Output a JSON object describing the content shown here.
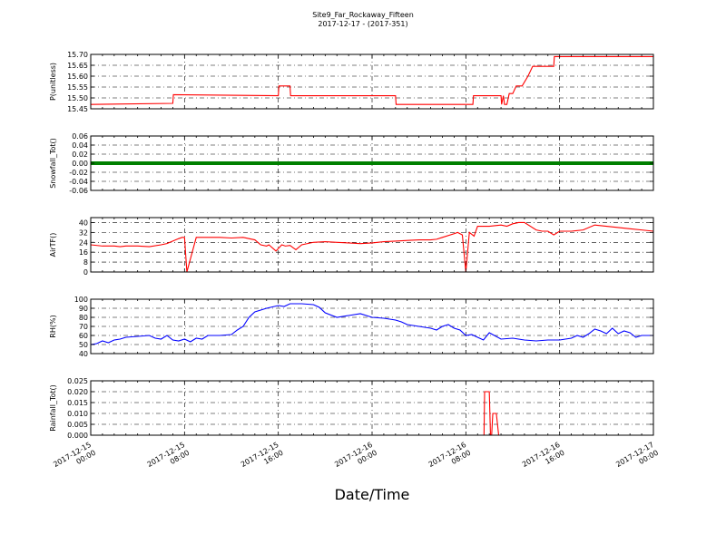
{
  "figure": {
    "title_line1": "Site9_Far_Rockaway_Fifteen",
    "title_line2": "2017-12-17 - (2017-351)",
    "xlabel": "Date/Time",
    "x_ticks": [
      "2017-12-15 00:00",
      "2017-12-15 08:00",
      "2017-12-15 16:00",
      "2017-12-16 00:00",
      "2017-12-16 08:00",
      "2017-12-16 16:00",
      "2017-12-17 00:00"
    ],
    "x_tick_lines": [
      [
        "2017-12-15",
        "00:00"
      ],
      [
        "2017-12-15",
        "08:00"
      ],
      [
        "2017-12-15",
        "16:00"
      ],
      [
        "2017-12-16",
        "00:00"
      ],
      [
        "2017-12-16",
        "08:00"
      ],
      [
        "2017-12-16",
        "16:00"
      ],
      [
        "2017-12-17",
        "00:00"
      ]
    ]
  },
  "chart_data": [
    {
      "type": "line",
      "ylabel": "P(unitless)",
      "color": "#ff0000",
      "ylim": [
        15.45,
        15.7
      ],
      "yticks": [
        "15.45",
        "15.50",
        "15.55",
        "15.60",
        "15.65",
        "15.70"
      ],
      "xlim_hours": [
        0,
        48
      ],
      "grid": true,
      "series": [
        {
          "x": [
            0,
            7.0,
            7.05,
            16.0,
            16.05,
            17.0,
            17.05,
            26.0,
            26.05,
            32.6,
            32.65,
            35.0,
            35.05,
            35.2,
            35.3,
            35.5,
            35.7,
            36.0,
            36.3,
            36.8,
            37.3,
            37.7,
            38.2,
            39.5,
            39.55,
            48.0
          ],
          "y": [
            15.47,
            15.475,
            15.515,
            15.51,
            15.555,
            15.555,
            15.51,
            15.51,
            15.47,
            15.47,
            15.51,
            15.51,
            15.47,
            15.51,
            15.47,
            15.47,
            15.52,
            15.52,
            15.555,
            15.555,
            15.6,
            15.645,
            15.645,
            15.645,
            15.69,
            15.69
          ]
        }
      ]
    },
    {
      "type": "line",
      "ylabel": "Snowfall_Tot()",
      "color": "#008000",
      "ylim": [
        -0.06,
        0.06
      ],
      "yticks": [
        "-0.06",
        "-0.04",
        "-0.02",
        "0.00",
        "0.02",
        "0.04",
        "0.06"
      ],
      "xlim_hours": [
        0,
        48
      ],
      "grid": true,
      "series": [
        {
          "x": [
            0,
            48
          ],
          "y": [
            0,
            0
          ]
        }
      ]
    },
    {
      "type": "line",
      "ylabel": "AirTF()",
      "color": "#ff0000",
      "ylim": [
        0,
        44
      ],
      "yticks": [
        "0",
        "8",
        "16",
        "24",
        "32",
        "40"
      ],
      "xlim_hours": [
        0,
        48
      ],
      "grid": true,
      "series": [
        {
          "x": [
            0,
            1,
            2,
            2.5,
            3,
            4,
            5,
            6,
            6.5,
            7.5,
            7.8,
            8.0,
            8.2,
            9,
            10,
            10.5,
            11,
            12,
            13,
            13.5,
            14,
            14.5,
            15,
            15.2,
            15.8,
            16.3,
            16.6,
            17,
            17.5,
            18,
            19,
            20,
            21,
            22,
            23,
            24,
            25,
            26,
            27,
            28,
            29,
            29.5,
            30,
            31,
            31.3,
            31.7,
            32.0,
            32.3,
            32.7,
            33,
            34,
            35,
            35.5,
            36,
            36.5,
            37,
            38,
            38.5,
            39,
            39.5,
            40,
            41,
            42,
            43,
            44,
            45,
            46,
            47,
            48
          ],
          "y": [
            22,
            21,
            21,
            20.5,
            21,
            21,
            20.5,
            22,
            23,
            27,
            28,
            28,
            0,
            28,
            28,
            28,
            28,
            27.5,
            28,
            27,
            26,
            22,
            21,
            22,
            17,
            22,
            21,
            21.5,
            18,
            22,
            24,
            24.5,
            24,
            23.5,
            23,
            23.5,
            24.5,
            25,
            25.5,
            26,
            26,
            26.5,
            28,
            31,
            32,
            30,
            0,
            32,
            29,
            37,
            37,
            38,
            37,
            39,
            40,
            40,
            34,
            33,
            33,
            30,
            33,
            33,
            34,
            38,
            37,
            36,
            35,
            34,
            33
          ]
        }
      ]
    },
    {
      "type": "line",
      "ylabel": "RH(%)",
      "color": "#0000ff",
      "ylim": [
        40,
        100
      ],
      "yticks": [
        "40",
        "50",
        "60",
        "70",
        "80",
        "90",
        "100"
      ],
      "xlim_hours": [
        0,
        48
      ],
      "grid": true,
      "series": [
        {
          "x": [
            0,
            0.5,
            1,
            1.5,
            2,
            2.5,
            3,
            4,
            5,
            5.5,
            6,
            6.5,
            7,
            7.5,
            8,
            8.5,
            9,
            9.5,
            10,
            11,
            12,
            12.5,
            13,
            13.5,
            14,
            15,
            16,
            16.5,
            17,
            18,
            19,
            19.5,
            20,
            21,
            22,
            23,
            24,
            25,
            26,
            26.5,
            27,
            28,
            29,
            29.5,
            30,
            30.5,
            31,
            31.5,
            32,
            32.5,
            33,
            33.5,
            34,
            35,
            36,
            37,
            38,
            39,
            40,
            41,
            41.5,
            42,
            42.5,
            43,
            43.5,
            44,
            44.5,
            45,
            45.5,
            46,
            46.5,
            47,
            48
          ],
          "y": [
            50,
            51,
            54,
            52,
            55,
            56,
            58,
            59,
            60,
            57,
            56,
            60,
            55,
            54,
            56,
            53,
            57,
            56,
            60,
            60,
            61,
            66,
            70,
            80,
            86,
            90,
            93,
            92,
            95,
            95,
            94,
            91,
            85,
            80,
            82,
            84,
            80,
            79,
            77,
            75,
            72,
            70,
            68,
            66,
            70,
            72,
            68,
            66,
            60,
            61,
            58,
            55,
            63,
            56,
            57,
            55,
            54,
            55,
            55,
            57,
            60,
            58,
            62,
            67,
            65,
            62,
            68,
            62,
            65,
            63,
            58,
            60,
            60
          ]
        }
      ]
    },
    {
      "type": "line",
      "ylabel": "Rainfall_Tot()",
      "color": "#ff0000",
      "ylim": [
        0,
        0.025
      ],
      "yticks": [
        "0.000",
        "0.005",
        "0.010",
        "0.015",
        "0.020",
        "0.025"
      ],
      "xlim_hours": [
        0,
        48
      ],
      "grid": true,
      "series": [
        {
          "x": [
            0,
            33.5,
            33.55,
            33.6,
            33.7,
            33.9,
            34.0,
            34.1,
            34.2,
            34.3,
            34.5,
            34.6,
            34.8,
            35.0,
            35.1,
            48
          ],
          "y": [
            0,
            0,
            0,
            0.02,
            0.02,
            0.02,
            0.02,
            0,
            0,
            0.01,
            0.01,
            0.01,
            0,
            0,
            0,
            0
          ]
        }
      ]
    }
  ]
}
